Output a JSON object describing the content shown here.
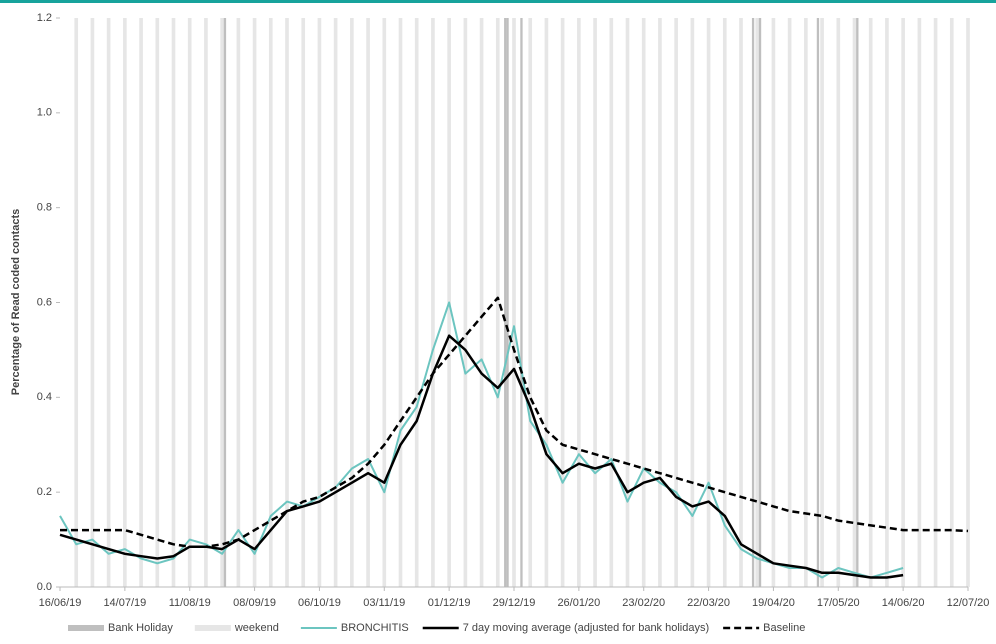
{
  "chart_data": {
    "type": "line",
    "y_label": "Percentage of Read coded contacts",
    "x": [
      "16/06/19",
      "23/06/19",
      "30/06/19",
      "07/07/19",
      "14/07/19",
      "21/07/19",
      "28/07/19",
      "04/08/19",
      "11/08/19",
      "18/08/19",
      "25/08/19",
      "01/09/19",
      "08/09/19",
      "15/09/19",
      "22/09/19",
      "29/09/19",
      "06/10/19",
      "13/10/19",
      "20/10/19",
      "27/10/19",
      "03/11/19",
      "10/11/19",
      "17/11/19",
      "24/11/19",
      "01/12/19",
      "08/12/19",
      "15/12/19",
      "22/12/19",
      "29/12/19",
      "05/01/20",
      "12/01/20",
      "19/01/20",
      "26/01/20",
      "02/02/20",
      "09/02/20",
      "16/02/20",
      "23/02/20",
      "01/03/20",
      "08/03/20",
      "15/03/20",
      "22/03/20",
      "29/03/20",
      "05/04/20",
      "12/04/20",
      "19/04/20",
      "26/04/20",
      "03/05/20",
      "10/05/20",
      "17/05/20",
      "24/05/20",
      "31/05/20",
      "07/06/20",
      "14/06/20",
      "21/06/20",
      "28/06/20",
      "05/07/20",
      "12/07/20"
    ],
    "series": [
      {
        "name": "BRONCHITIS",
        "color": "#6cc5c0",
        "dash": false,
        "width": 2,
        "values": [
          0.15,
          0.09,
          0.1,
          0.07,
          0.08,
          0.06,
          0.05,
          0.06,
          0.1,
          0.09,
          0.07,
          0.12,
          0.07,
          0.15,
          0.18,
          0.17,
          0.19,
          0.21,
          0.25,
          0.27,
          0.2,
          0.33,
          0.38,
          0.5,
          0.6,
          0.45,
          0.48,
          0.4,
          0.55,
          0.35,
          0.3,
          0.22,
          0.28,
          0.24,
          0.27,
          0.18,
          0.25,
          0.22,
          0.2,
          0.15,
          0.22,
          0.13,
          0.08,
          0.06,
          0.05,
          0.04,
          0.04,
          0.02,
          0.04,
          0.03,
          0.02,
          0.03,
          0.04,
          null,
          null,
          null,
          null
        ]
      },
      {
        "name": "7 day moving average (adjusted for bank holidays)",
        "color": "#000000",
        "dash": false,
        "width": 2.5,
        "values": [
          0.11,
          0.1,
          0.09,
          0.08,
          0.07,
          0.065,
          0.06,
          0.065,
          0.085,
          0.085,
          0.08,
          0.1,
          0.08,
          0.12,
          0.16,
          0.17,
          0.18,
          0.2,
          0.22,
          0.24,
          0.22,
          0.3,
          0.35,
          0.45,
          0.53,
          0.5,
          0.45,
          0.42,
          0.46,
          0.38,
          0.28,
          0.24,
          0.26,
          0.25,
          0.26,
          0.2,
          0.22,
          0.23,
          0.19,
          0.17,
          0.18,
          0.15,
          0.09,
          0.07,
          0.05,
          0.045,
          0.04,
          0.03,
          0.03,
          0.025,
          0.02,
          0.02,
          0.025,
          null,
          null,
          null,
          null
        ]
      },
      {
        "name": "Baseline",
        "color": "#000000",
        "dash": true,
        "width": 2.5,
        "values": [
          0.12,
          0.12,
          0.12,
          0.12,
          0.12,
          0.11,
          0.1,
          0.09,
          0.085,
          0.085,
          0.09,
          0.1,
          0.12,
          0.14,
          0.16,
          0.18,
          0.19,
          0.21,
          0.23,
          0.26,
          0.3,
          0.35,
          0.4,
          0.45,
          0.49,
          0.53,
          0.57,
          0.61,
          0.5,
          0.4,
          0.33,
          0.3,
          0.29,
          0.28,
          0.27,
          0.26,
          0.25,
          0.24,
          0.23,
          0.22,
          0.21,
          0.2,
          0.19,
          0.18,
          0.17,
          0.16,
          0.155,
          0.15,
          0.14,
          0.135,
          0.13,
          0.125,
          0.12,
          0.12,
          0.12,
          0.12,
          0.118
        ]
      }
    ],
    "bank_holiday_label": "Bank Holiday",
    "bank_holiday_color": "#bfbfbf",
    "bank_holidays": [
      "26/08/19",
      "25/12/19",
      "26/12/19",
      "01/01/20",
      "10/04/20",
      "13/04/20",
      "08/05/20",
      "25/05/20"
    ],
    "weekend_label": "weekend",
    "weekend_color": "#e6e6e6",
    "xlim": [
      "16/06/19",
      "12/07/20"
    ],
    "xticks": [
      "16/06/19",
      "14/07/19",
      "11/08/19",
      "08/09/19",
      "06/10/19",
      "03/11/19",
      "01/12/19",
      "29/12/19",
      "26/01/20",
      "23/02/20",
      "22/03/20",
      "19/04/20",
      "17/05/20",
      "14/06/20",
      "12/07/20"
    ],
    "ylim": [
      0,
      1.2
    ],
    "yticks": [
      {
        "value": 0,
        "label": "0.0"
      },
      0.2,
      0.4,
      0.6,
      0.8,
      {
        "value": 1,
        "label": "1.0"
      },
      1.2
    ]
  }
}
